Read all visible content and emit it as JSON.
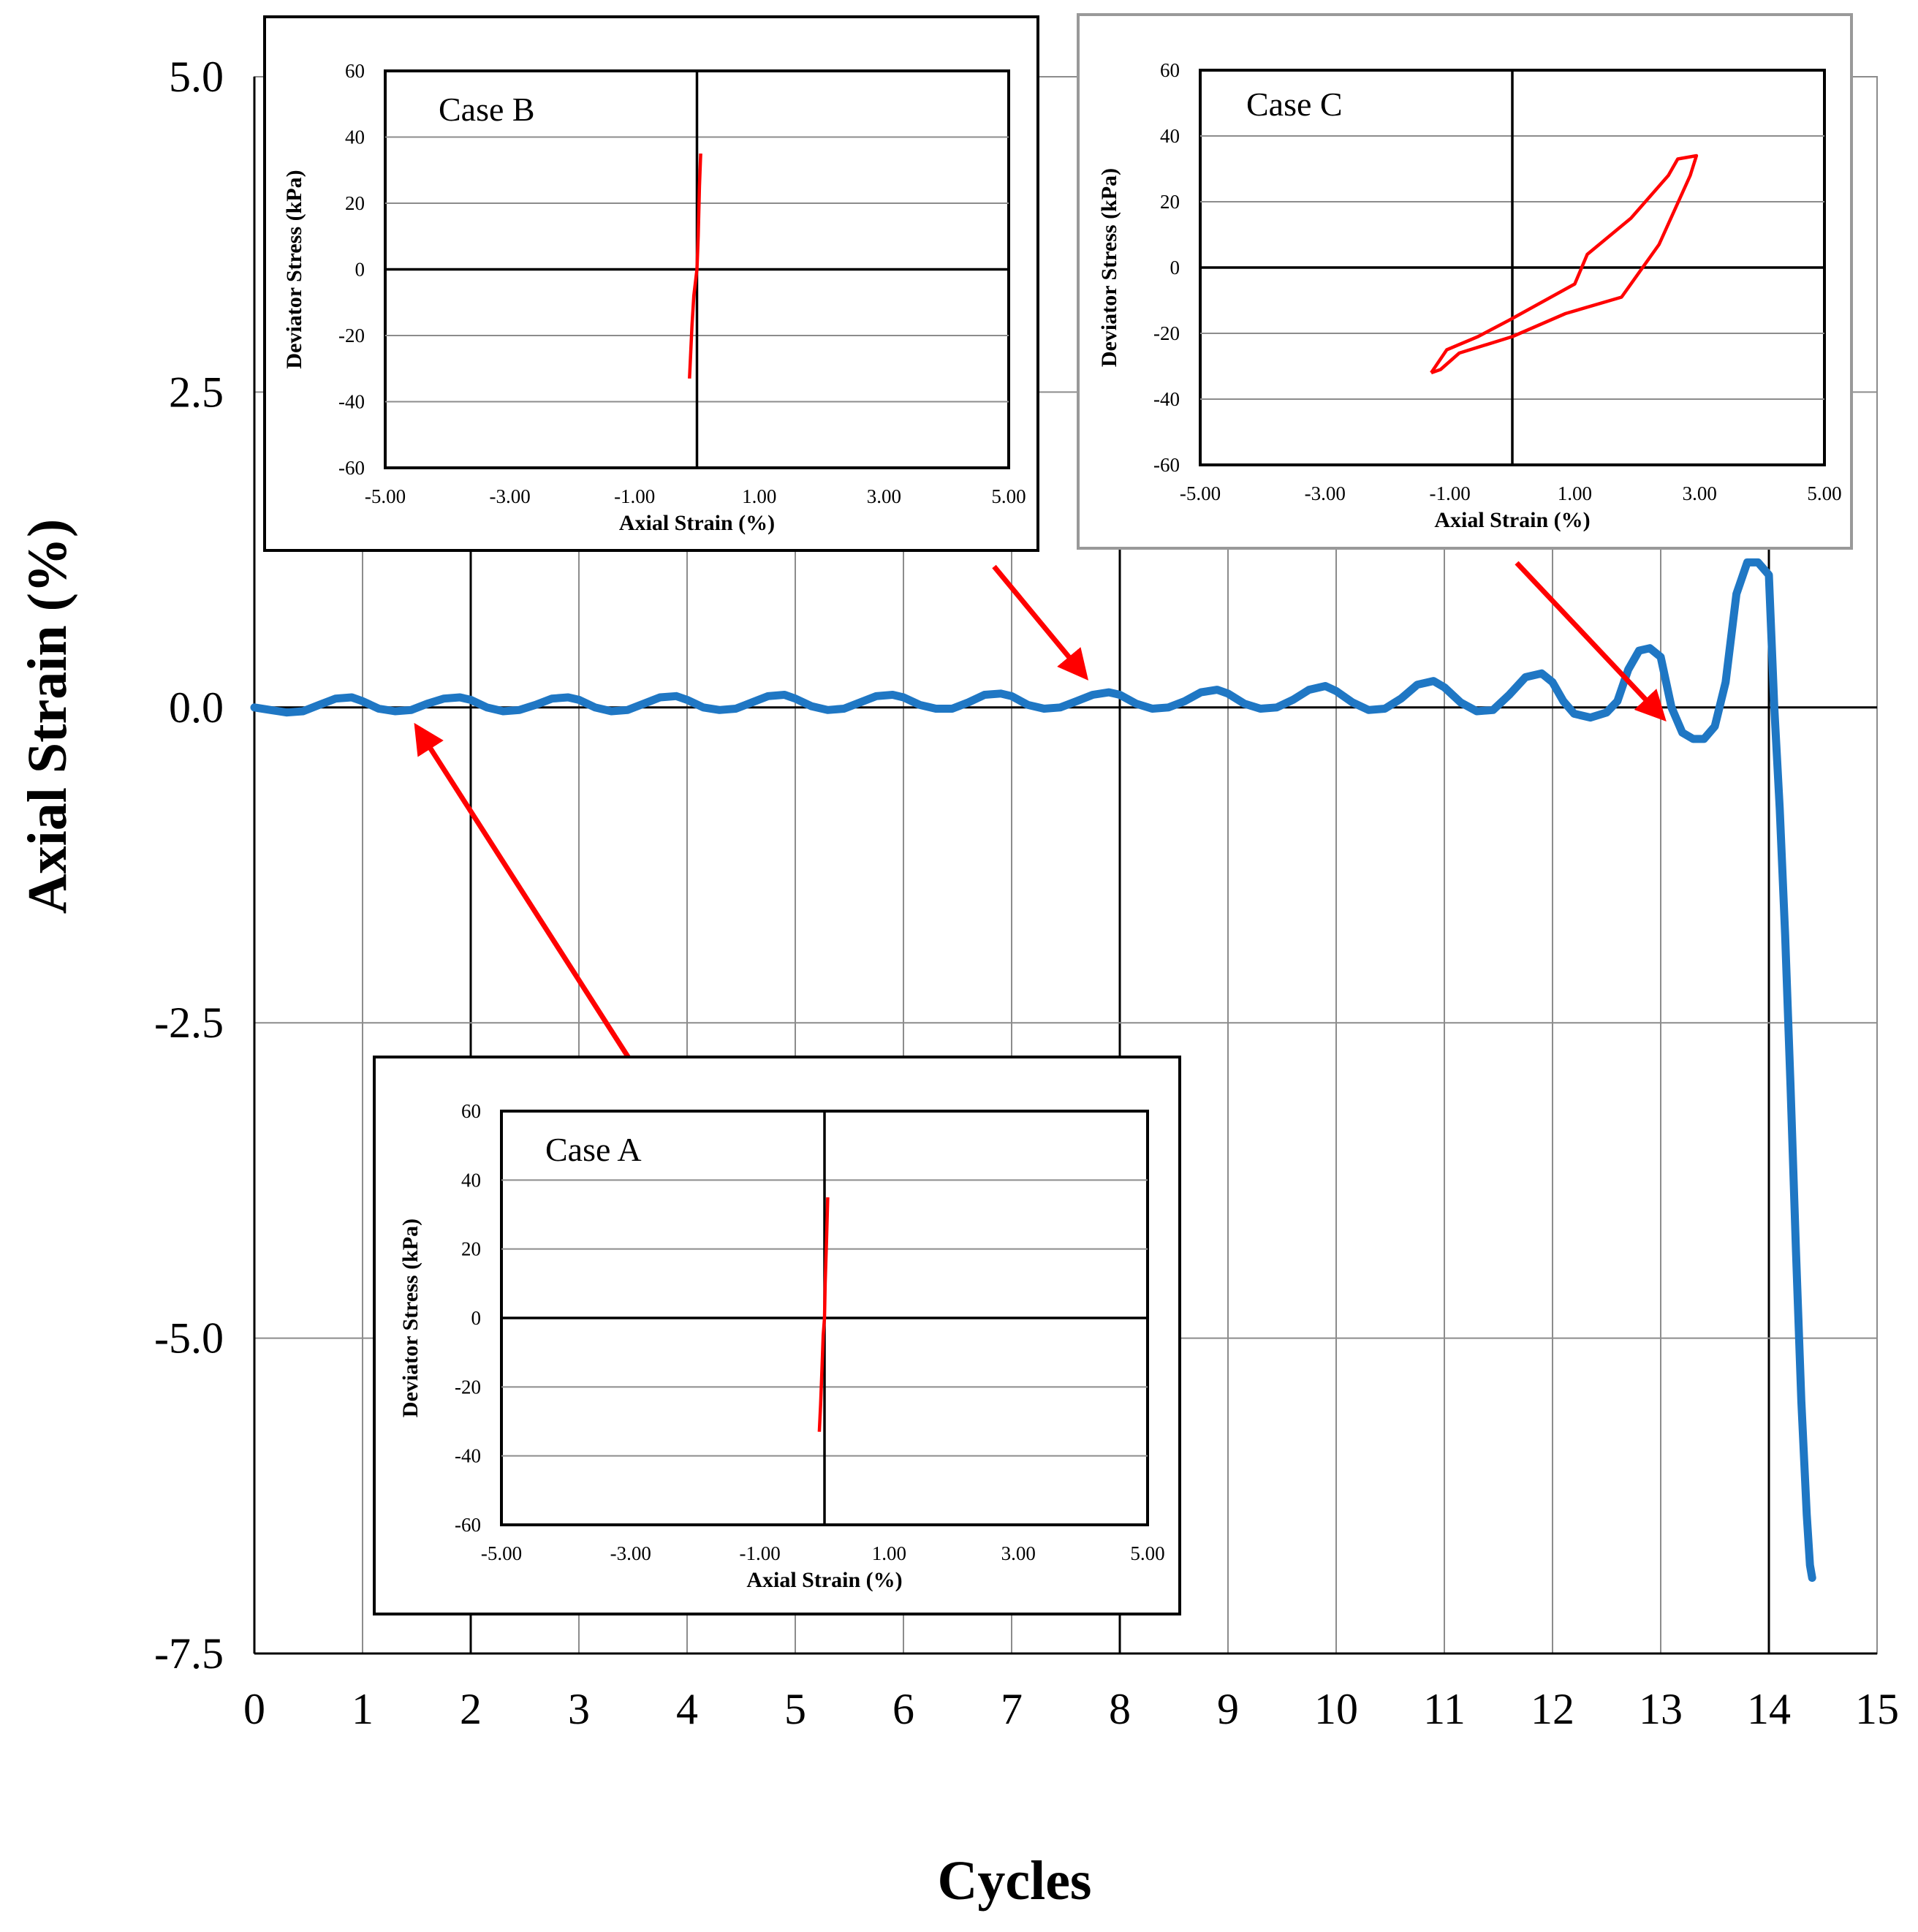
{
  "chart_data": [
    {
      "type": "line",
      "id": "main",
      "title": "",
      "xlabel": "Cycles",
      "ylabel": "Axial Strain (%)",
      "xlim": [
        0,
        15
      ],
      "ylim": [
        -7.5,
        5.0
      ],
      "xticks": [
        0,
        1,
        2,
        3,
        4,
        5,
        6,
        7,
        8,
        9,
        10,
        11,
        12,
        13,
        14,
        15
      ],
      "xtick_labels": [
        "0",
        "1",
        "2",
        "3",
        "4",
        "5",
        "6",
        "7",
        "8",
        "9",
        "10",
        "11",
        "12",
        "13",
        "14",
        "15"
      ],
      "yticks": [
        5.0,
        2.5,
        0.0,
        -2.5,
        -5.0,
        -7.5
      ],
      "ytick_labels": [
        "5.0",
        "2.5",
        "0.0",
        "-2.5",
        "-5.0",
        "-7.5"
      ],
      "grid": true,
      "series": [
        {
          "name": "Axial strain",
          "color": "#1f77c4",
          "x": [
            0,
            0.15,
            0.3,
            0.45,
            0.6,
            0.75,
            0.9,
            1.0,
            1.15,
            1.3,
            1.45,
            1.6,
            1.75,
            1.9,
            2.0,
            2.15,
            2.3,
            2.45,
            2.6,
            2.75,
            2.9,
            3.0,
            3.15,
            3.3,
            3.45,
            3.6,
            3.75,
            3.9,
            4.0,
            4.15,
            4.3,
            4.45,
            4.6,
            4.75,
            4.9,
            5.0,
            5.15,
            5.3,
            5.45,
            5.6,
            5.75,
            5.9,
            6.0,
            6.15,
            6.3,
            6.45,
            6.6,
            6.75,
            6.9,
            7.0,
            7.15,
            7.3,
            7.45,
            7.6,
            7.75,
            7.9,
            8.0,
            8.15,
            8.3,
            8.45,
            8.6,
            8.75,
            8.9,
            9.0,
            9.15,
            9.3,
            9.45,
            9.6,
            9.75,
            9.9,
            10.0,
            10.15,
            10.3,
            10.45,
            10.6,
            10.75,
            10.9,
            11.0,
            11.15,
            11.3,
            11.45,
            11.6,
            11.75,
            11.9,
            12.0,
            12.1,
            12.2,
            12.35,
            12.5,
            12.6,
            12.7,
            12.8,
            12.9,
            13.0,
            13.1,
            13.2,
            13.3,
            13.4,
            13.5,
            13.6,
            13.7,
            13.8,
            13.9,
            14.0,
            14.05,
            14.1,
            14.15,
            14.2,
            14.25,
            14.3,
            14.35,
            14.38,
            14.4
          ],
          "y": [
            0.0,
            -0.02,
            -0.04,
            -0.03,
            0.02,
            0.07,
            0.08,
            0.05,
            -0.01,
            -0.03,
            -0.02,
            0.03,
            0.07,
            0.08,
            0.06,
            0.0,
            -0.03,
            -0.02,
            0.02,
            0.07,
            0.08,
            0.06,
            0.0,
            -0.03,
            -0.02,
            0.03,
            0.08,
            0.09,
            0.06,
            0.0,
            -0.02,
            -0.01,
            0.04,
            0.09,
            0.1,
            0.07,
            0.01,
            -0.02,
            -0.01,
            0.04,
            0.09,
            0.1,
            0.08,
            0.02,
            -0.01,
            -0.01,
            0.04,
            0.1,
            0.11,
            0.09,
            0.02,
            -0.01,
            0.0,
            0.05,
            0.1,
            0.12,
            0.1,
            0.03,
            -0.01,
            0.0,
            0.05,
            0.12,
            0.14,
            0.11,
            0.03,
            -0.01,
            0.0,
            0.06,
            0.14,
            0.17,
            0.13,
            0.04,
            -0.02,
            -0.01,
            0.07,
            0.18,
            0.21,
            0.16,
            0.04,
            -0.03,
            -0.02,
            0.1,
            0.24,
            0.27,
            0.2,
            0.05,
            -0.05,
            -0.08,
            -0.04,
            0.05,
            0.3,
            0.45,
            0.47,
            0.4,
            0.0,
            -0.2,
            -0.25,
            -0.25,
            -0.15,
            0.2,
            0.9,
            1.15,
            1.15,
            1.05,
            0.0,
            -0.8,
            -1.8,
            -3.0,
            -4.3,
            -5.5,
            -6.4,
            -6.8,
            -6.9
          ]
        }
      ],
      "annotations": [
        {
          "name": "Case A",
          "points_to": [
            1.4,
            -0.02
          ]
        },
        {
          "name": "Case B",
          "points_to": [
            7.8,
            0.12
          ]
        },
        {
          "name": "Case C",
          "points_to": [
            13.15,
            -0.2
          ]
        }
      ]
    },
    {
      "type": "line",
      "id": "case-b",
      "title": "Case B",
      "xlabel": "Axial Strain (%)",
      "ylabel": "Deviator Stress (kPa)",
      "xlim": [
        -5.0,
        5.0
      ],
      "ylim": [
        -60,
        60
      ],
      "xticks": [
        -5.0,
        -3.0,
        -1.0,
        1.0,
        3.0,
        5.0
      ],
      "xtick_labels": [
        "-5.00",
        "-3.00",
        "-1.00",
        "1.00",
        "3.00",
        "5.00"
      ],
      "yticks": [
        60,
        40,
        20,
        0,
        -20,
        -40,
        -60
      ],
      "ytick_labels": [
        "60",
        "40",
        "20",
        "0",
        "-20",
        "-40",
        "-60"
      ],
      "series": [
        {
          "name": "Case B",
          "color": "#ff0000",
          "x": [
            -0.12,
            -0.1,
            -0.08,
            -0.05,
            0.0,
            0.02,
            0.04,
            0.06
          ],
          "y": [
            -33,
            -25,
            -17,
            -8,
            0,
            10,
            25,
            35
          ]
        }
      ]
    },
    {
      "type": "line",
      "id": "case-c",
      "title": "Case C",
      "xlabel": "Axial Strain (%)",
      "ylabel": "Deviator Stress (kPa)",
      "xlim": [
        -5.0,
        5.0
      ],
      "ylim": [
        -60,
        60
      ],
      "xticks": [
        -5.0,
        -3.0,
        -1.0,
        1.0,
        3.0,
        5.0
      ],
      "xtick_labels": [
        "-5.00",
        "-3.00",
        "-1.00",
        "1.00",
        "3.00",
        "5.00"
      ],
      "yticks": [
        60,
        40,
        20,
        0,
        -20,
        -40,
        -60
      ],
      "ytick_labels": [
        "60",
        "40",
        "20",
        "0",
        "-20",
        "-40",
        "-60"
      ],
      "series": [
        {
          "name": "Case C",
          "color": "#ff0000",
          "x": [
            -1.3,
            -1.05,
            -0.55,
            -0.05,
            1.0,
            1.2,
            1.9,
            2.5,
            2.65,
            2.95,
            2.85,
            2.35,
            1.75,
            0.85,
            0.0,
            -0.85,
            -1.15,
            -1.3
          ],
          "y": [
            -32,
            -25,
            -21,
            -16,
            -5,
            4,
            15,
            28,
            33,
            34,
            28,
            7,
            -9,
            -14,
            -21,
            -26,
            -31,
            -32
          ]
        }
      ]
    },
    {
      "type": "line",
      "id": "case-a",
      "title": "Case A",
      "xlabel": "Axial Strain (%)",
      "ylabel": "Deviator Stress (kPa)",
      "xlim": [
        -5.0,
        5.0
      ],
      "ylim": [
        -60,
        60
      ],
      "xticks": [
        -5.0,
        -3.0,
        -1.0,
        1.0,
        3.0,
        5.0
      ],
      "xtick_labels": [
        "-5.00",
        "-3.00",
        "-1.00",
        "1.00",
        "3.00",
        "5.00"
      ],
      "yticks": [
        60,
        40,
        20,
        0,
        -20,
        -40,
        -60
      ],
      "ytick_labels": [
        "60",
        "40",
        "20",
        "0",
        "-20",
        "-40",
        "-60"
      ],
      "series": [
        {
          "name": "Case A",
          "color": "#ff0000",
          "x": [
            -0.08,
            -0.06,
            -0.04,
            -0.02,
            0.0,
            0.01,
            0.03,
            0.05
          ],
          "y": [
            -33,
            -25,
            -15,
            -5,
            0,
            10,
            22,
            35
          ]
        }
      ]
    }
  ]
}
